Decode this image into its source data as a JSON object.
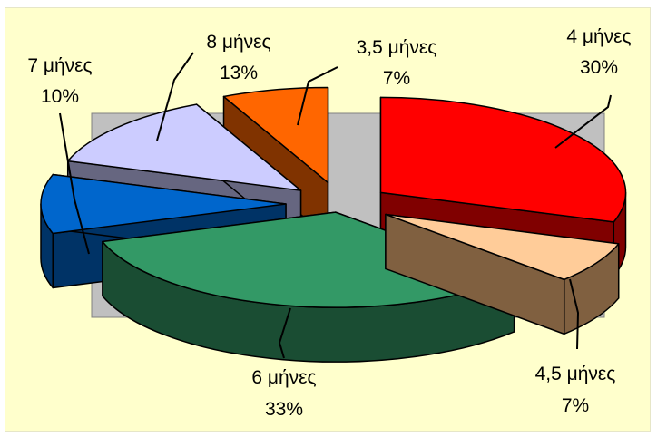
{
  "chart_data": {
    "type": "pie",
    "style": "3d-exploded",
    "plot_area_background": "#c0c0c0",
    "chart_background": "#ffffcc",
    "slices": [
      {
        "label": "4 μήνες",
        "percent_label": "30%",
        "value": 30,
        "color": "#ff0000",
        "side_color": "#800000"
      },
      {
        "label": "4,5 μήνες",
        "percent_label": "7%",
        "value": 7,
        "color": "#ffcc99",
        "side_color": "#806040"
      },
      {
        "label": "6 μήνες",
        "percent_label": "33%",
        "value": 33,
        "color": "#339966",
        "side_color": "#1a4d33"
      },
      {
        "label": "7 μήνες",
        "percent_label": "10%",
        "value": 10,
        "color": "#0066cc",
        "side_color": "#003366"
      },
      {
        "label": "8 μήνες",
        "percent_label": "13%",
        "value": 13,
        "color": "#ccccff",
        "side_color": "#666680"
      },
      {
        "label": "3,5 μήνες",
        "percent_label": "7%",
        "value": 7,
        "color": "#ff6600",
        "side_color": "#803300"
      }
    ]
  }
}
